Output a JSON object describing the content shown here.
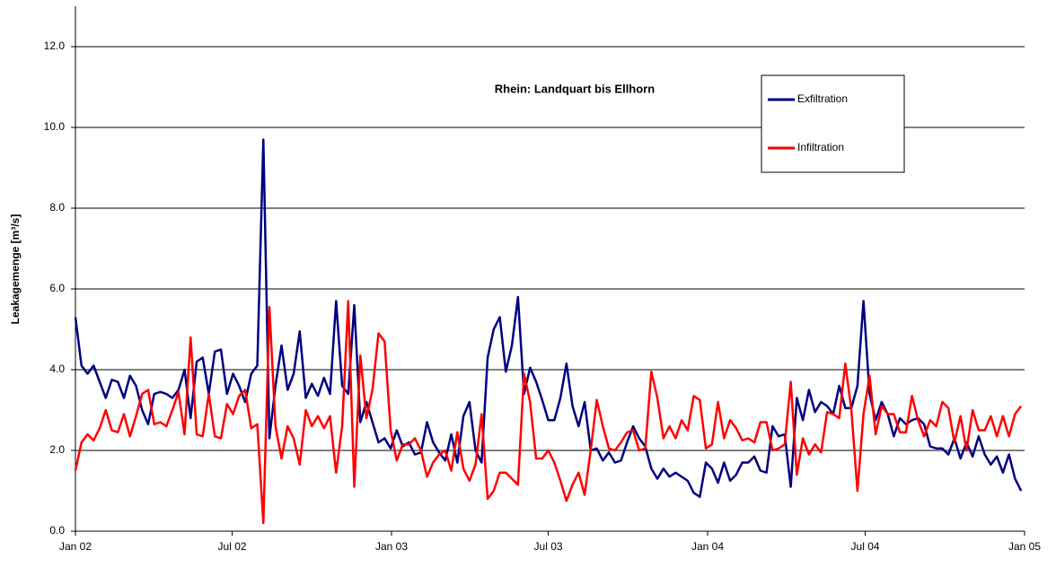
{
  "chart_data": {
    "type": "line",
    "title": "Rhein: Landquart bis Ellhorn",
    "y_label": "Leakagemenge [m³/s]",
    "x": [
      0,
      7,
      14,
      21,
      28,
      35,
      42,
      49,
      56,
      63,
      70,
      77,
      84,
      91,
      98,
      105,
      112,
      119,
      126,
      133,
      140,
      147,
      154,
      161,
      168,
      175,
      182,
      189,
      196,
      203,
      210,
      217,
      224,
      231,
      238,
      245,
      252,
      259,
      266,
      273,
      280,
      287,
      294,
      301,
      308,
      315,
      322,
      329,
      336,
      343,
      350,
      357,
      364,
      371,
      378,
      385,
      392,
      399,
      406,
      413,
      420,
      427,
      434,
      441,
      448,
      455,
      462,
      469,
      476,
      483,
      490,
      497,
      504,
      511,
      518,
      525,
      532,
      539,
      546,
      553,
      560,
      567,
      574,
      581,
      588,
      595,
      602,
      609,
      616,
      623,
      630,
      637,
      644,
      651,
      658,
      665,
      672,
      679,
      686,
      693,
      700,
      707,
      714,
      721,
      728,
      735,
      742,
      749,
      756,
      763,
      770,
      777,
      784,
      791,
      798,
      805,
      812,
      819,
      826,
      833,
      840,
      847,
      854,
      861,
      868,
      875,
      882,
      889,
      896,
      903,
      910,
      917,
      924,
      931,
      938,
      945,
      952,
      959,
      966,
      973,
      980,
      987,
      994,
      1001,
      1008,
      1015,
      1022,
      1029,
      1036,
      1043,
      1050,
      1057,
      1064,
      1071,
      1078,
      1085,
      1092
    ],
    "series": [
      {
        "name": "Exfiltration",
        "color": "#000080",
        "values": [
          5.3,
          4.1,
          3.9,
          4.1,
          3.7,
          3.3,
          3.75,
          3.7,
          3.3,
          3.85,
          3.6,
          3.0,
          2.65,
          3.4,
          3.45,
          3.4,
          3.3,
          3.5,
          4.0,
          2.8,
          4.2,
          4.3,
          3.4,
          4.45,
          4.5,
          3.4,
          3.9,
          3.6,
          3.2,
          3.9,
          4.1,
          9.7,
          2.3,
          3.6,
          4.6,
          3.5,
          3.9,
          4.95,
          3.3,
          3.65,
          3.35,
          3.8,
          3.4,
          5.7,
          3.6,
          3.4,
          5.6,
          2.7,
          3.2,
          2.7,
          2.2,
          2.3,
          2.05,
          2.5,
          2.1,
          2.2,
          1.9,
          1.95,
          2.7,
          2.2,
          1.95,
          1.75,
          2.4,
          1.7,
          2.85,
          3.2,
          2.0,
          1.7,
          4.3,
          5.0,
          5.3,
          3.95,
          4.6,
          5.8,
          3.4,
          4.05,
          3.7,
          3.25,
          2.75,
          2.75,
          3.3,
          4.15,
          3.1,
          2.6,
          3.2,
          2.0,
          2.05,
          1.75,
          1.95,
          1.7,
          1.75,
          2.2,
          2.6,
          2.3,
          2.1,
          1.55,
          1.3,
          1.55,
          1.35,
          1.45,
          1.35,
          1.25,
          0.95,
          0.85,
          1.7,
          1.55,
          1.2,
          1.7,
          1.25,
          1.4,
          1.7,
          1.7,
          1.85,
          1.5,
          1.45,
          2.6,
          2.35,
          2.4,
          1.1,
          3.3,
          2.75,
          3.5,
          2.95,
          3.2,
          3.1,
          2.9,
          3.6,
          3.05,
          3.05,
          3.6,
          5.7,
          3.4,
          2.75,
          3.2,
          2.9,
          2.35,
          2.8,
          2.65,
          2.75,
          2.8,
          2.65,
          2.1,
          2.05,
          2.05,
          1.9,
          2.3,
          1.8,
          2.2,
          1.85,
          2.35,
          1.9,
          1.65,
          1.85,
          1.45,
          1.9,
          1.3,
          1.0
        ]
      },
      {
        "name": "Infiltration",
        "color": "#ff0000",
        "values": [
          1.5,
          2.2,
          2.4,
          2.25,
          2.55,
          3.0,
          2.5,
          2.45,
          2.9,
          2.35,
          2.85,
          3.4,
          3.5,
          2.65,
          2.7,
          2.6,
          3.0,
          3.45,
          2.4,
          4.8,
          2.4,
          2.35,
          3.4,
          2.35,
          2.3,
          3.15,
          2.9,
          3.35,
          3.5,
          2.55,
          2.65,
          0.2,
          5.55,
          2.6,
          1.8,
          2.6,
          2.3,
          1.65,
          3.0,
          2.6,
          2.85,
          2.55,
          2.85,
          1.45,
          2.6,
          5.7,
          1.1,
          4.35,
          2.8,
          3.5,
          4.9,
          4.7,
          2.5,
          1.75,
          2.15,
          2.15,
          2.3,
          2.0,
          1.35,
          1.7,
          1.9,
          2.0,
          1.5,
          2.45,
          1.55,
          1.25,
          1.65,
          2.9,
          0.8,
          1.0,
          1.45,
          1.45,
          1.3,
          1.15,
          3.9,
          3.2,
          1.8,
          1.8,
          2.0,
          1.7,
          1.25,
          0.75,
          1.15,
          1.45,
          0.9,
          2.0,
          3.25,
          2.6,
          2.05,
          2.0,
          2.2,
          2.45,
          2.5,
          2.0,
          2.05,
          3.95,
          3.3,
          2.3,
          2.6,
          2.3,
          2.75,
          2.5,
          3.35,
          3.25,
          2.05,
          2.15,
          3.2,
          2.3,
          2.75,
          2.55,
          2.25,
          2.3,
          2.2,
          2.7,
          2.7,
          2.0,
          2.05,
          2.15,
          3.7,
          1.4,
          2.3,
          1.9,
          2.15,
          1.95,
          2.95,
          2.9,
          2.8,
          4.15,
          3.0,
          1.0,
          2.9,
          3.85,
          2.4,
          3.1,
          2.9,
          2.9,
          2.45,
          2.45,
          3.35,
          2.75,
          2.35,
          2.75,
          2.6,
          3.2,
          3.05,
          2.2,
          2.85,
          2.0,
          3.0,
          2.5,
          2.5,
          2.85,
          2.35,
          2.85,
          2.35,
          2.9,
          3.1
        ]
      }
    ],
    "xlim": [
      0,
      1096
    ],
    "xticks": [
      {
        "value": 0,
        "label": "Jan 02"
      },
      {
        "value": 181,
        "label": "Jul 02"
      },
      {
        "value": 365,
        "label": "Jan 03"
      },
      {
        "value": 546,
        "label": "Jul 03"
      },
      {
        "value": 730,
        "label": "Jan 04"
      },
      {
        "value": 912,
        "label": "Jul 04"
      },
      {
        "value": 1096,
        "label": "Jan 05"
      }
    ],
    "ylim": [
      0,
      13
    ],
    "yticks": [
      {
        "value": 0,
        "label": "0.0"
      },
      {
        "value": 2,
        "label": "2.0"
      },
      {
        "value": 4,
        "label": "4.0"
      },
      {
        "value": 6,
        "label": "6.0"
      },
      {
        "value": 8,
        "label": "8.0"
      },
      {
        "value": 10,
        "label": "10.0"
      },
      {
        "value": 12,
        "label": "12.0"
      }
    ],
    "grid": true,
    "legend": "upper right"
  }
}
